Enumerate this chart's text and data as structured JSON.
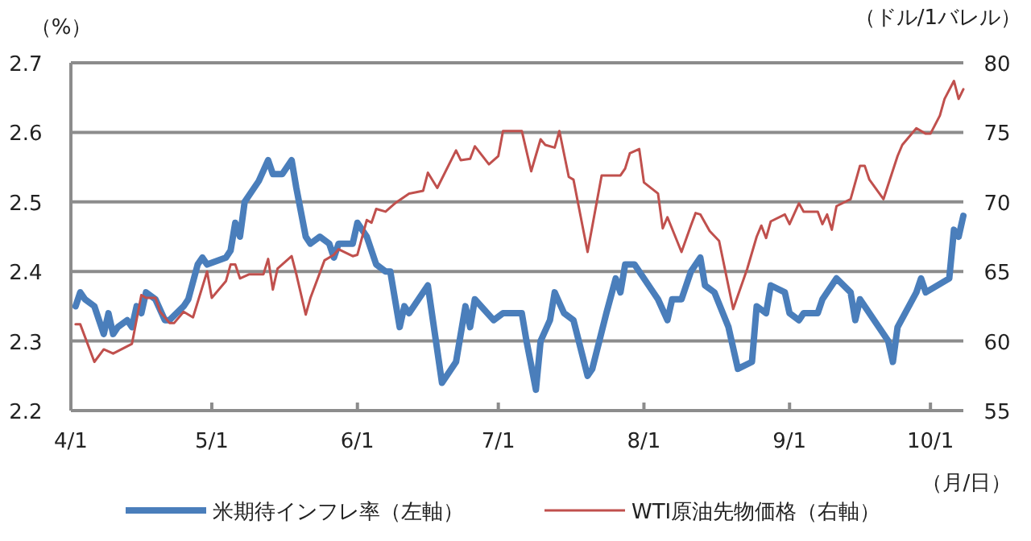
{
  "chart_data": {
    "type": "line",
    "xlabel": "（月/日）",
    "ylabel": "（%）",
    "y2label": "（ドル/1バレル）",
    "xlim": [
      "--04-01",
      "--10-08"
    ],
    "xticks": [
      {
        "value": "--04-01",
        "label": "4/1"
      },
      {
        "value": "--05-01",
        "label": "5/1"
      },
      {
        "value": "--06-01",
        "label": "6/1"
      },
      {
        "value": "--07-01",
        "label": "7/1"
      },
      {
        "value": "--08-01",
        "label": "8/1"
      },
      {
        "value": "--09-01",
        "label": "9/1"
      },
      {
        "value": "--10-01",
        "label": "10/1"
      }
    ],
    "ylim": [
      2.2,
      2.7
    ],
    "yticks": [
      2.2,
      2.3,
      2.4,
      2.5,
      2.6,
      2.7
    ],
    "y2lim": [
      55,
      80
    ],
    "y2ticks": [
      55,
      60,
      65,
      70,
      75,
      80
    ],
    "grid": "y",
    "legend": "bottom",
    "series": [
      {
        "name": "米期待インフレ率（左軸）",
        "color": "#4a7ebb",
        "x": [
          "--04-02",
          "--04-03",
          "--04-04",
          "--04-06",
          "--04-07",
          "--04-08",
          "--04-09",
          "--04-10",
          "--04-11",
          "--04-13",
          "--04-14",
          "--04-15",
          "--04-16",
          "--04-17",
          "--04-19",
          "--04-21",
          "--04-22",
          "--04-25",
          "--04-26",
          "--04-28",
          "--04-29",
          "--04-30",
          "--05-04",
          "--05-05",
          "--05-06",
          "--05-07",
          "--05-08",
          "--05-11",
          "--05-13",
          "--05-14",
          "--05-16",
          "--05-18",
          "--05-19",
          "--05-21",
          "--05-22",
          "--05-24",
          "--05-26",
          "--05-27",
          "--05-28",
          "--05-31",
          "--06-01",
          "--06-03",
          "--06-04",
          "--06-05",
          "--06-07",
          "--06-08",
          "--06-10",
          "--06-11",
          "--06-12",
          "--06-16",
          "--06-19",
          "--06-22",
          "--06-24",
          "--06-25",
          "--06-26",
          "--06-30",
          "--07-02",
          "--07-06",
          "--07-07",
          "--07-09",
          "--07-10",
          "--07-12",
          "--07-13",
          "--07-15",
          "--07-17",
          "--07-20",
          "--07-21",
          "--07-24",
          "--07-26",
          "--07-27",
          "--07-28",
          "--07-30",
          "--08-03",
          "--08-04",
          "--08-06",
          "--08-07",
          "--08-09",
          "--08-11",
          "--08-13",
          "--08-14",
          "--08-16",
          "--08-19",
          "--08-21",
          "--08-24",
          "--08-25",
          "--08-27",
          "--08-28",
          "--08-31",
          "--09-01",
          "--09-03",
          "--09-04",
          "--09-07",
          "--09-08",
          "--09-11",
          "--09-14",
          "--09-15",
          "--09-16",
          "--09-20",
          "--09-22",
          "--09-23",
          "--09-24",
          "--09-28",
          "--09-29",
          "--09-30",
          "--10-05",
          "--10-06",
          "--10-07",
          "--10-08"
        ],
        "values": [
          2.35,
          2.37,
          2.36,
          2.35,
          2.33,
          2.31,
          2.34,
          2.31,
          2.32,
          2.33,
          2.32,
          2.35,
          2.34,
          2.37,
          2.36,
          2.33,
          2.33,
          2.35,
          2.36,
          2.41,
          2.42,
          2.41,
          2.42,
          2.43,
          2.47,
          2.45,
          2.5,
          2.53,
          2.56,
          2.54,
          2.54,
          2.56,
          2.52,
          2.45,
          2.44,
          2.45,
          2.44,
          2.42,
          2.44,
          2.44,
          2.47,
          2.45,
          2.43,
          2.41,
          2.4,
          2.4,
          2.32,
          2.35,
          2.34,
          2.38,
          2.24,
          2.27,
          2.35,
          2.32,
          2.36,
          2.33,
          2.34,
          2.34,
          2.3,
          2.23,
          2.3,
          2.33,
          2.37,
          2.34,
          2.33,
          2.25,
          2.26,
          2.34,
          2.39,
          2.37,
          2.41,
          2.41,
          2.37,
          2.36,
          2.33,
          2.36,
          2.36,
          2.4,
          2.42,
          2.38,
          2.37,
          2.32,
          2.26,
          2.27,
          2.35,
          2.34,
          2.38,
          2.37,
          2.34,
          2.33,
          2.34,
          2.34,
          2.36,
          2.39,
          2.37,
          2.33,
          2.36,
          2.32,
          2.3,
          2.27,
          2.32,
          2.37,
          2.39,
          2.37,
          2.39,
          2.46,
          2.45,
          2.48
        ]
      },
      {
        "name": "WTI原油先物価格（右軸）",
        "color": "#c0504d",
        "axis": "y2",
        "x": [
          "--04-02",
          "--04-03",
          "--04-06",
          "--04-08",
          "--04-10",
          "--04-14",
          "--04-16",
          "--04-17",
          "--04-19",
          "--04-20",
          "--04-22",
          "--04-23",
          "--04-25",
          "--04-27",
          "--04-30",
          "--05-01",
          "--05-04",
          "--05-05",
          "--05-06",
          "--05-07",
          "--05-09",
          "--05-12",
          "--05-13",
          "--05-14",
          "--05-15",
          "--05-18",
          "--05-19",
          "--05-21",
          "--05-22",
          "--05-25",
          "--05-27",
          "--05-28",
          "--05-31",
          "--06-01",
          "--06-03",
          "--06-04",
          "--06-05",
          "--06-07",
          "--06-09",
          "--06-12",
          "--06-15",
          "--06-16",
          "--06-18",
          "--06-22",
          "--06-23",
          "--06-25",
          "--06-26",
          "--06-29",
          "--07-01",
          "--07-02",
          "--07-06",
          "--07-08",
          "--07-10",
          "--07-11",
          "--07-13",
          "--07-14",
          "--07-16",
          "--07-17",
          "--07-20",
          "--07-23",
          "--07-27",
          "--07-28",
          "--07-29",
          "--07-31",
          "--08-01",
          "--08-04",
          "--08-05",
          "--08-06",
          "--08-09",
          "--08-11",
          "--08-12",
          "--08-13",
          "--08-15",
          "--08-17",
          "--08-20",
          "--08-23",
          "--08-25",
          "--08-26",
          "--08-27",
          "--08-28",
          "--08-31",
          "--09-01",
          "--09-03",
          "--09-04",
          "--09-07",
          "--09-08",
          "--09-09",
          "--09-10",
          "--09-11",
          "--09-14",
          "--09-16",
          "--09-17",
          "--09-18",
          "--09-21",
          "--09-24",
          "--09-25",
          "--09-28",
          "--09-30",
          "--10-01",
          "--10-03",
          "--10-04",
          "--10-06",
          "--10-07",
          "--10-08"
        ],
        "values": [
          61.2,
          61.2,
          58.5,
          59.4,
          59.1,
          59.8,
          63.3,
          63.1,
          63.1,
          62.1,
          61.3,
          61.3,
          62.1,
          61.7,
          65.0,
          63.1,
          64.3,
          65.5,
          65.5,
          64.5,
          64.8,
          64.8,
          65.9,
          63.7,
          65.2,
          66.1,
          64.8,
          61.9,
          63.1,
          65.8,
          66.2,
          66.6,
          66.1,
          66.2,
          68.7,
          68.5,
          69.5,
          69.3,
          69.9,
          70.6,
          70.8,
          72.1,
          71.0,
          73.7,
          73.0,
          73.1,
          74.0,
          72.7,
          73.3,
          75.1,
          75.1,
          72.2,
          74.5,
          74.1,
          73.9,
          75.1,
          71.8,
          71.6,
          66.4,
          71.9,
          71.9,
          72.4,
          73.5,
          73.8,
          71.4,
          70.6,
          68.1,
          68.9,
          66.4,
          68.3,
          69.2,
          69.1,
          67.9,
          67.2,
          62.3,
          65.2,
          67.5,
          68.3,
          67.4,
          68.6,
          69.1,
          68.4,
          69.9,
          69.3,
          69.3,
          68.4,
          69.1,
          68.0,
          69.7,
          70.2,
          72.6,
          72.6,
          71.6,
          70.2,
          73.3,
          74.1,
          75.3,
          74.9,
          74.9,
          76.2,
          77.4,
          78.7,
          77.4,
          78.1
        ]
      }
    ]
  }
}
